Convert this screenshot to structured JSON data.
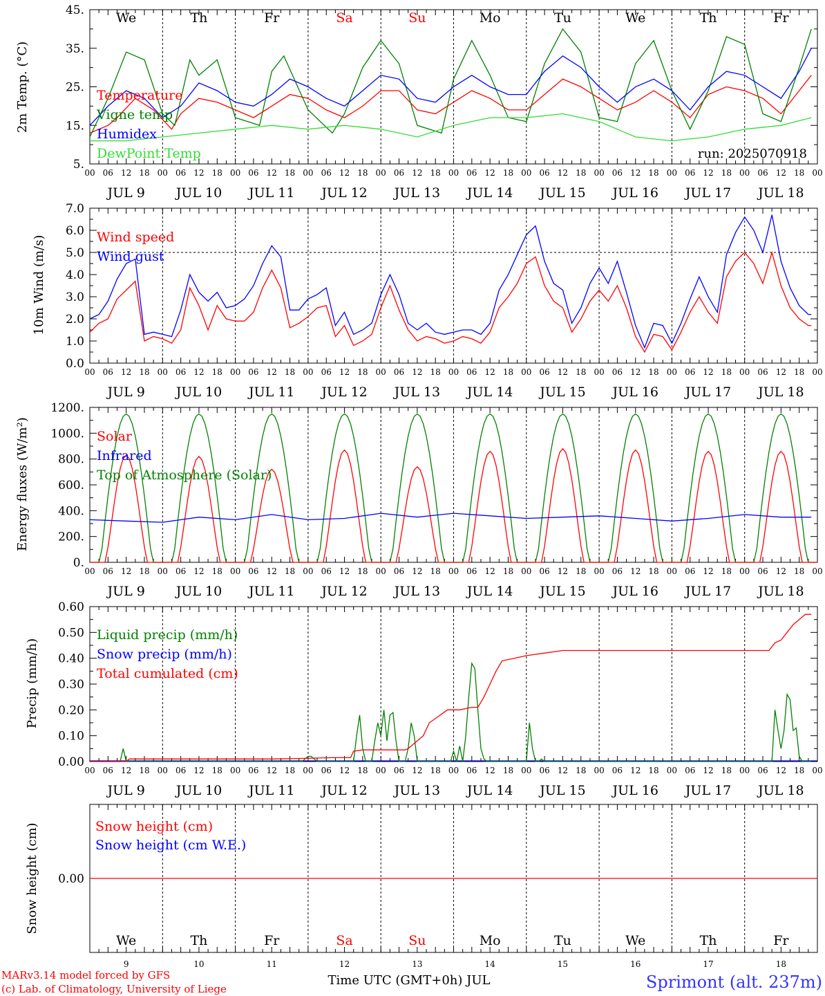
{
  "days": [
    "We",
    "Th",
    "Fr",
    "Sa",
    "Su",
    "Mo",
    "Tu",
    "We",
    "Th",
    "Fr"
  ],
  "weekend_days": [
    3,
    4
  ],
  "dates": [
    "JUL  9",
    "JUL 10",
    "JUL 11",
    "JUL 12",
    "JUL 13",
    "JUL 14",
    "JUL 15",
    "JUL 16",
    "JUL 17",
    "JUL 18"
  ],
  "day_numbers": [
    "9",
    "10",
    "11",
    "12",
    "13",
    "14",
    "15",
    "16",
    "17",
    "18"
  ],
  "hour_ticks": [
    "00",
    "06",
    "12",
    "18"
  ],
  "run_label": "run: 2025070918",
  "colors": {
    "red": "#ff0000",
    "green": "#008000",
    "blue": "#0000ff",
    "lightgreen": "#33dd33",
    "text": "#000000"
  },
  "footer": {
    "model": "MARv3.14 model forced by GFS",
    "lab": "(c) Lab. of Climatology, University of Liege",
    "xlabel": "Time UTC (GMT+0h) JUL",
    "station": "Sprimont (alt. 237m)"
  },
  "chart_data": [
    {
      "type": "line",
      "ylabel": "2m Temp. (°C)",
      "ylim": [
        5,
        45
      ],
      "yticks": [
        "5.",
        "15.",
        "25.",
        "35.",
        "45."
      ],
      "ytick_values": [
        5,
        15,
        25,
        35,
        45
      ],
      "x_unit": "hours since JUL 9 00 UTC",
      "legend": [
        "Temperature",
        "Vigne temp",
        "Humidex",
        "DewPoint Temp"
      ],
      "series": [
        {
          "name": "Temperature",
          "color": "red",
          "x": [
            0,
            6,
            9,
            15,
            21,
            27,
            30,
            36,
            42,
            48,
            54,
            60,
            66,
            72,
            78,
            84,
            90,
            96,
            102,
            108,
            114,
            120,
            126,
            132,
            138,
            144,
            150,
            156,
            162,
            168,
            174,
            180,
            186,
            192,
            198,
            204,
            210,
            216,
            222,
            228,
            234,
            238
          ],
          "y": [
            13,
            15,
            17,
            22,
            19,
            14,
            18,
            22,
            21,
            19,
            17,
            20,
            23,
            22,
            19,
            17,
            20,
            24,
            24,
            19,
            18,
            21,
            24,
            22,
            19,
            19,
            23,
            27,
            25,
            22,
            19,
            21,
            24,
            21,
            17,
            23,
            25,
            24,
            22,
            18,
            24,
            28
          ]
        },
        {
          "name": "Vigne temp",
          "color": "green",
          "x": [
            0,
            6,
            12,
            18,
            24,
            28,
            33,
            36,
            42,
            48,
            56,
            60,
            64,
            72,
            80,
            84,
            90,
            96,
            102,
            108,
            116,
            120,
            126,
            132,
            138,
            144,
            150,
            156,
            162,
            168,
            174,
            180,
            186,
            192,
            198,
            204,
            210,
            216,
            222,
            228,
            234,
            238
          ],
          "y": [
            12,
            22,
            34,
            32,
            18,
            15,
            32,
            28,
            32,
            17,
            15,
            29,
            33,
            19,
            13,
            18,
            30,
            37,
            31,
            15,
            13,
            27,
            37,
            28,
            17,
            16,
            31,
            40,
            34,
            17,
            16,
            31,
            37,
            24,
            14,
            24,
            38,
            36,
            18,
            16,
            30,
            40
          ]
        },
        {
          "name": "Humidex",
          "color": "blue",
          "x": [
            0,
            6,
            12,
            18,
            24,
            30,
            36,
            42,
            48,
            54,
            60,
            66,
            72,
            78,
            84,
            90,
            96,
            102,
            108,
            114,
            120,
            126,
            132,
            138,
            144,
            150,
            156,
            162,
            168,
            174,
            180,
            186,
            192,
            198,
            204,
            210,
            216,
            222,
            228,
            234,
            238
          ],
          "y": [
            15,
            20,
            24,
            22,
            17,
            20,
            26,
            24,
            21,
            20,
            23,
            27,
            25,
            22,
            20,
            24,
            28,
            27,
            22,
            21,
            25,
            28,
            25,
            23,
            23,
            29,
            33,
            30,
            25,
            21,
            25,
            27,
            24,
            19,
            25,
            29,
            28,
            25,
            22,
            29,
            35
          ]
        },
        {
          "name": "DewPoint Temp",
          "color": "lightgreen",
          "x": [
            0,
            12,
            24,
            36,
            48,
            60,
            72,
            84,
            96,
            108,
            120,
            132,
            144,
            156,
            168,
            180,
            192,
            204,
            216,
            228,
            238
          ],
          "y": [
            11,
            11,
            12,
            13,
            14,
            15,
            14,
            15,
            14,
            12,
            15,
            17,
            17,
            18,
            16,
            12,
            11,
            12,
            14,
            15,
            17
          ]
        }
      ]
    },
    {
      "type": "line",
      "ylabel": "10m Wind (m/s)",
      "ylim": [
        0,
        7
      ],
      "yticks": [
        "0.0",
        "1.0",
        "2.0",
        "3.0",
        "4.0",
        "5.0",
        "6.0",
        "7.0"
      ],
      "ytick_values": [
        0,
        1,
        2,
        3,
        4,
        5,
        6,
        7
      ],
      "reference_line": 5,
      "legend": [
        "Wind speed",
        "Wind gust"
      ],
      "series": [
        {
          "name": "Wind speed",
          "color": "red",
          "x": [
            0,
            3,
            6,
            9,
            12,
            15,
            18,
            21,
            24,
            27,
            30,
            33,
            36,
            39,
            42,
            45,
            48,
            51,
            54,
            57,
            60,
            63,
            66,
            69,
            72,
            75,
            78,
            81,
            84,
            87,
            90,
            93,
            96,
            99,
            102,
            105,
            108,
            111,
            114,
            117,
            120,
            123,
            126,
            129,
            132,
            135,
            138,
            141,
            144,
            147,
            150,
            153,
            156,
            159,
            162,
            165,
            168,
            171,
            174,
            177,
            180,
            183,
            186,
            189,
            192,
            195,
            198,
            201,
            204,
            207,
            210,
            213,
            216,
            219,
            222,
            225,
            228,
            231,
            234,
            237,
            238
          ],
          "y": [
            1.4,
            1.8,
            2.0,
            2.9,
            3.3,
            3.7,
            1.0,
            1.2,
            1.1,
            0.9,
            1.5,
            3.4,
            2.6,
            1.5,
            2.6,
            2.0,
            1.9,
            1.9,
            2.3,
            3.4,
            4.2,
            3.4,
            1.6,
            1.8,
            2.1,
            2.5,
            2.6,
            1.2,
            1.7,
            0.8,
            1.0,
            1.3,
            2.5,
            3.5,
            2.4,
            1.5,
            1.0,
            1.2,
            1.1,
            0.9,
            1.0,
            1.2,
            1.1,
            0.9,
            1.4,
            2.5,
            3.0,
            3.6,
            4.5,
            4.8,
            3.5,
            2.8,
            2.5,
            1.4,
            2.0,
            2.8,
            3.3,
            2.8,
            3.5,
            2.5,
            1.2,
            0.5,
            1.3,
            1.2,
            0.6,
            1.4,
            2.3,
            3.0,
            2.3,
            1.8,
            3.9,
            4.6,
            5.0,
            4.5,
            3.6,
            5.0,
            3.5,
            2.5,
            2.0,
            1.7,
            1.7
          ]
        },
        {
          "name": "Wind gust",
          "color": "blue",
          "x": [
            0,
            3,
            6,
            9,
            12,
            15,
            18,
            21,
            24,
            27,
            30,
            33,
            36,
            39,
            42,
            45,
            48,
            51,
            54,
            57,
            60,
            63,
            66,
            69,
            72,
            75,
            78,
            81,
            84,
            87,
            90,
            93,
            96,
            99,
            102,
            105,
            108,
            111,
            114,
            117,
            120,
            123,
            126,
            129,
            132,
            135,
            138,
            141,
            144,
            147,
            150,
            153,
            156,
            159,
            162,
            165,
            168,
            171,
            174,
            177,
            180,
            183,
            186,
            189,
            192,
            195,
            198,
            201,
            204,
            207,
            210,
            213,
            216,
            219,
            222,
            225,
            228,
            231,
            234,
            237,
            238
          ],
          "y": [
            2.0,
            2.2,
            2.8,
            3.8,
            4.5,
            4.7,
            1.3,
            1.4,
            1.3,
            1.2,
            2.4,
            4.0,
            3.2,
            2.8,
            3.2,
            2.5,
            2.6,
            2.9,
            3.5,
            4.5,
            5.3,
            4.8,
            2.4,
            2.4,
            2.9,
            3.1,
            3.4,
            1.7,
            2.3,
            1.3,
            1.5,
            1.8,
            3.1,
            4.0,
            3.1,
            1.8,
            1.5,
            1.8,
            1.4,
            1.3,
            1.4,
            1.5,
            1.5,
            1.3,
            1.8,
            3.3,
            4.0,
            4.9,
            5.8,
            6.2,
            4.6,
            3.6,
            3.3,
            1.8,
            2.5,
            3.6,
            4.3,
            3.6,
            4.6,
            3.2,
            1.7,
            0.7,
            1.8,
            1.7,
            0.9,
            1.8,
            2.9,
            3.9,
            3.0,
            2.3,
            4.9,
            5.9,
            6.6,
            6.0,
            5.0,
            6.7,
            4.6,
            3.4,
            2.6,
            2.2,
            2.2
          ]
        }
      ]
    },
    {
      "type": "line",
      "ylabel": "Energy fluxes (W/m²)",
      "ylim": [
        0,
        1200
      ],
      "yticks": [
        "0.",
        "200.",
        "400.",
        "600.",
        "800.",
        "1000.",
        "1200."
      ],
      "ytick_values": [
        0,
        200,
        400,
        600,
        800,
        1000,
        1200
      ],
      "legend": [
        "Solar",
        "Infrared",
        "Top of Atmosphere (Solar)"
      ],
      "toa_peak": 1150,
      "solar_daily_peak": [
        830,
        820,
        720,
        870,
        740,
        860,
        880,
        870,
        860,
        860
      ],
      "infrared_x": [
        0,
        12,
        24,
        36,
        48,
        60,
        72,
        84,
        96,
        108,
        120,
        132,
        144,
        156,
        168,
        180,
        192,
        204,
        216,
        228,
        238
      ],
      "infrared_y": [
        330,
        320,
        310,
        350,
        330,
        370,
        330,
        340,
        380,
        350,
        380,
        360,
        340,
        350,
        360,
        340,
        320,
        340,
        370,
        350,
        350
      ],
      "series_names": [
        "Solar",
        "Infrared",
        "Top of Atmosphere (Solar)"
      ]
    },
    {
      "type": "line",
      "ylabel": "Precip (mm/h)",
      "ylim": [
        0,
        0.6
      ],
      "yticks": [
        "0.00",
        "0.10",
        "0.20",
        "0.30",
        "0.40",
        "0.50",
        "0.60"
      ],
      "ytick_values": [
        0,
        0.1,
        0.2,
        0.3,
        0.4,
        0.5,
        0.6
      ],
      "legend": [
        "Liquid precip (mm/h)",
        "Snow precip (mm/h)",
        "Total cumulated (cm)"
      ],
      "series": [
        {
          "name": "Liquid precip (mm/h)",
          "color": "green",
          "x": [
            0,
            10,
            11,
            12,
            13,
            70,
            71,
            72,
            73,
            74,
            75,
            76,
            77,
            78,
            79,
            80,
            87,
            88,
            89,
            90,
            91,
            93,
            94,
            95,
            96,
            97,
            98,
            99,
            100,
            101,
            102,
            104,
            105,
            106,
            107,
            108,
            119,
            120,
            121,
            122,
            123,
            124,
            125,
            126,
            127,
            128,
            129,
            130,
            131,
            132,
            133,
            134,
            143,
            144,
            145,
            146,
            147,
            148,
            149,
            150,
            151,
            152,
            153,
            154,
            155,
            156,
            157,
            158,
            159,
            160,
            161,
            225,
            226,
            227,
            228,
            229,
            230,
            231,
            232,
            233,
            234,
            235,
            236,
            237,
            238
          ],
          "y": [
            0,
            0,
            0.05,
            0,
            0,
            0,
            0.01,
            0.02,
            0.02,
            0.01,
            0,
            0,
            0,
            0,
            0,
            0,
            0,
            0.1,
            0.18,
            0.05,
            0,
            0,
            0.08,
            0.15,
            0.1,
            0.2,
            0.08,
            0.18,
            0.19,
            0.08,
            0,
            0,
            0.05,
            0.15,
            0.1,
            0,
            0,
            0.04,
            0,
            0.06,
            0,
            0.1,
            0.25,
            0.38,
            0.36,
            0.2,
            0.05,
            0.01,
            0,
            0,
            0,
            0,
            0,
            0,
            0.15,
            0.05,
            0,
            0,
            0.01,
            0,
            0,
            0,
            0,
            0,
            0,
            0,
            0,
            0,
            0,
            0,
            0,
            0,
            0.2,
            0.12,
            0.05,
            0.12,
            0.26,
            0.24,
            0.12,
            0.13,
            0.02,
            0,
            0,
            0,
            0
          ]
        },
        {
          "name": "Total cumulated (cm)",
          "color": "red",
          "x": [
            0,
            12,
            13,
            60,
            70,
            80,
            86,
            87,
            90,
            104,
            105,
            110,
            112,
            118,
            120,
            122,
            126,
            128,
            130,
            132,
            134,
            136,
            140,
            144,
            150,
            156,
            200,
            224,
            226,
            228,
            230,
            232,
            234,
            236,
            238
          ],
          "y": [
            0,
            0,
            0.01,
            0.01,
            0.012,
            0.015,
            0.015,
            0.04,
            0.045,
            0.045,
            0.05,
            0.1,
            0.15,
            0.2,
            0.2,
            0.2,
            0.21,
            0.21,
            0.25,
            0.3,
            0.35,
            0.39,
            0.4,
            0.41,
            0.42,
            0.43,
            0.43,
            0.43,
            0.46,
            0.47,
            0.5,
            0.53,
            0.55,
            0.57,
            0.57
          ]
        }
      ]
    },
    {
      "type": "line",
      "ylabel": "Snow height (cm)",
      "yticks": [
        "0.00"
      ],
      "legend": [
        "Snow height (cm)",
        "Snow height (cm W.E.)"
      ],
      "series": [
        {
          "name": "Snow height (cm)",
          "color": "red",
          "x": [
            0,
            240
          ],
          "y": [
            0,
            0
          ]
        }
      ]
    }
  ]
}
